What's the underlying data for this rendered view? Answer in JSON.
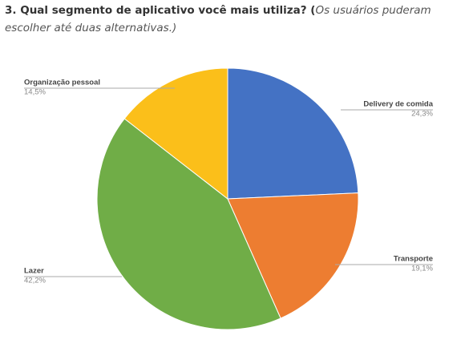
{
  "chart_data": {
    "type": "pie",
    "title": "3. Qual segmento de aplicativo você mais utiliza? (",
    "subtitle": "Os usuários puderam escolher até duas alternativas.)",
    "categories": [
      "Delivery de comida",
      "Transporte",
      "Lazer",
      "Organização pessoal"
    ],
    "values": [
      24.3,
      19.1,
      42.2,
      14.5
    ],
    "value_labels": [
      "24,3%",
      "19,1%",
      "42,2%",
      "14,5%"
    ],
    "colors": [
      "#4472c4",
      "#ed7d31",
      "#70ad47",
      "#fbbf1a"
    ]
  }
}
